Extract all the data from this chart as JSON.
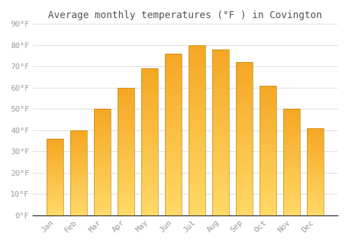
{
  "title": "Average monthly temperatures (°F ) in Covington",
  "months": [
    "Jan",
    "Feb",
    "Mar",
    "Apr",
    "May",
    "Jun",
    "Jul",
    "Aug",
    "Sep",
    "Oct",
    "Nov",
    "Dec"
  ],
  "values": [
    36,
    40,
    50,
    60,
    69,
    76,
    80,
    78,
    72,
    61,
    50,
    41
  ],
  "bar_color_top": "#F5A623",
  "bar_color_bottom": "#FFD966",
  "bar_edge_color": "#B8860B",
  "bar_edge_width": 0.5,
  "ylim": [
    0,
    90
  ],
  "yticks": [
    0,
    10,
    20,
    30,
    40,
    50,
    60,
    70,
    80,
    90
  ],
  "ytick_labels": [
    "0°F",
    "10°F",
    "20°F",
    "30°F",
    "40°F",
    "50°F",
    "60°F",
    "70°F",
    "80°F",
    "90°F"
  ],
  "title_fontsize": 10,
  "tick_fontsize": 8,
  "background_color": "#ffffff",
  "plot_bg_color": "#ffffff",
  "grid_color": "#e0e0e0",
  "tick_color": "#999999",
  "title_color": "#555555",
  "bar_width": 0.7,
  "gradient_steps": 100
}
